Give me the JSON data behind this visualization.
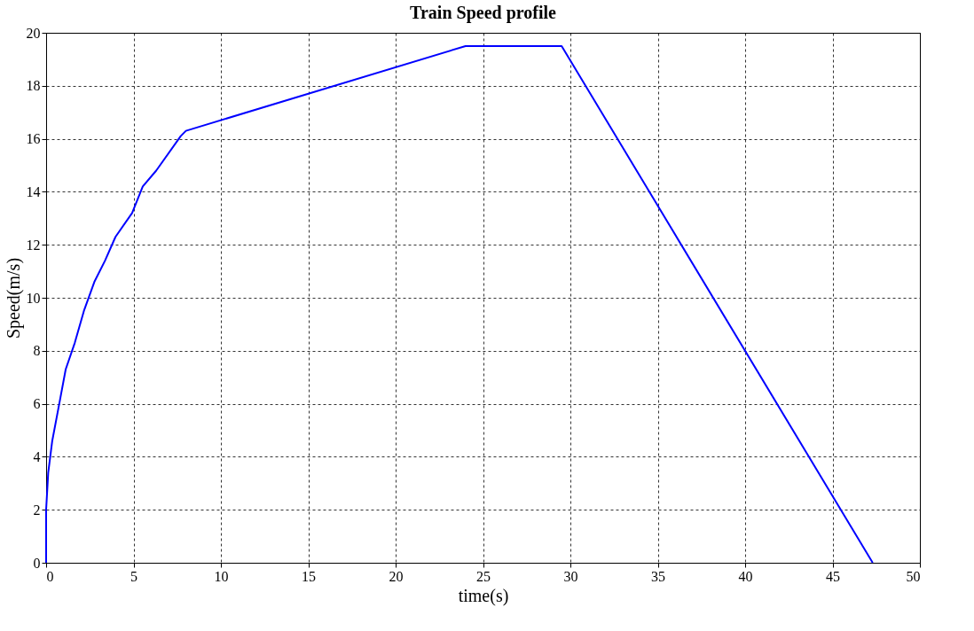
{
  "chart_data": {
    "type": "line",
    "title": "Train Speed profile",
    "xlabel": "time(s)",
    "ylabel": "Speed(m/s)",
    "x": [
      0,
      0,
      0.12,
      0.35,
      0.78,
      1.12,
      1.64,
      2.16,
      2.76,
      3.37,
      3.97,
      4.92,
      5.53,
      6.3,
      7.7,
      8.0,
      24,
      29.5,
      47.3
    ],
    "series": [
      {
        "color": "#0000ff",
        "values": [
          0,
          2.0,
          3.4,
          4.6,
          6.1,
          7.3,
          8.3,
          9.5,
          10.6,
          11.4,
          12.3,
          13.2,
          14.2,
          14.8,
          16.1,
          16.3,
          19.5,
          19.5,
          0
        ]
      }
    ],
    "xlim": [
      0,
      50
    ],
    "xticks": [
      0,
      5,
      10,
      15,
      20,
      25,
      30,
      35,
      40,
      45,
      50
    ],
    "ylim": [
      0,
      20
    ],
    "yticks": [
      0,
      2,
      4,
      6,
      8,
      10,
      12,
      14,
      16,
      18,
      20
    ],
    "grid": true,
    "marker": "none",
    "line_style": "solid",
    "legend": false
  }
}
